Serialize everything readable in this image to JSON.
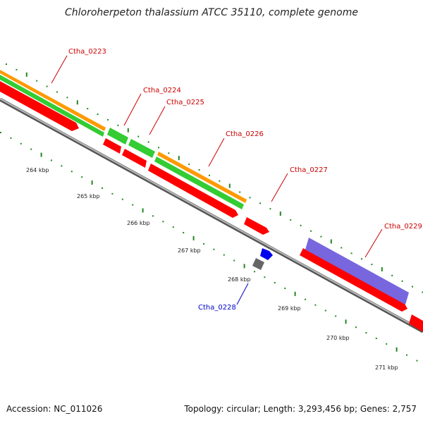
{
  "title": "Chloroherpeton thalassium ATCC 35110, complete genome",
  "footer": {
    "accession": "Accession: NC_011026",
    "summary": "Topology: circular; Length: 3,293,456 bp; Genes: 2,757"
  },
  "colors": {
    "cds": "#ff0000",
    "gene_green": "#33cc33",
    "gene_orange": "#ff9900",
    "purple": "#7766dd",
    "backbone": "#888888",
    "tick": "#228822",
    "label_red": "#cc0000",
    "label_blue": "#0000cc"
  },
  "scale_labels": [
    "264 kbp",
    "265 kbp",
    "266 kbp",
    "267 kbp",
    "268 kbp",
    "269 kbp",
    "270 kbp",
    "271 kbp"
  ],
  "genes": [
    {
      "id": "Ctha_0223",
      "color": "label_red"
    },
    {
      "id": "Ctha_0224",
      "color": "label_red"
    },
    {
      "id": "Ctha_0225",
      "color": "label_red"
    },
    {
      "id": "Ctha_0226",
      "color": "label_red"
    },
    {
      "id": "Ctha_0227",
      "color": "label_red"
    },
    {
      "id": "Ctha_0228",
      "color": "label_blue"
    },
    {
      "id": "Ctha_0229",
      "color": "label_red"
    }
  ]
}
